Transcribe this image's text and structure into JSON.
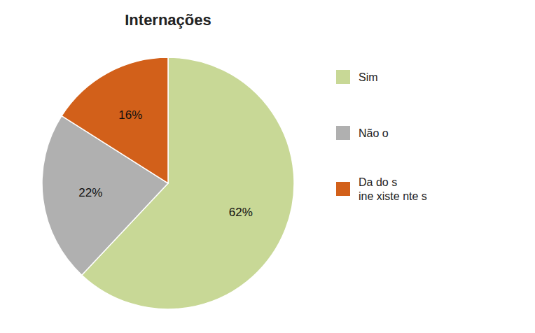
{
  "chart_data": {
    "type": "pie",
    "title": "Internações",
    "categories": [
      "Sim",
      "Não o",
      "Da do s\nine xiste nte s"
    ],
    "values": [
      62,
      22,
      16
    ],
    "value_labels": [
      "62%",
      "22%",
      "16%"
    ],
    "colors": [
      "#c8d896",
      "#b0b0b0",
      "#d2601a"
    ],
    "data_labels": true,
    "legend": "right"
  }
}
